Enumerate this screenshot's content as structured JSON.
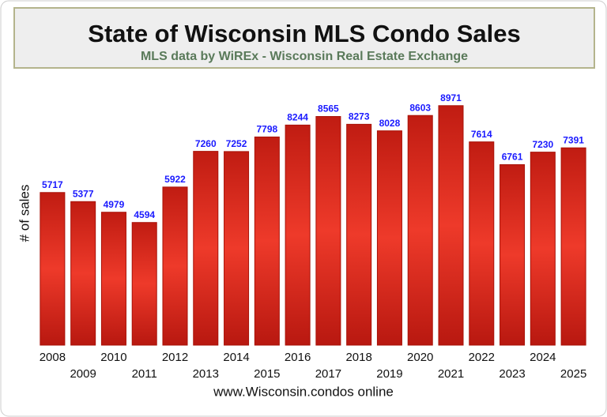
{
  "chart_data": {
    "type": "bar",
    "title": "State of Wisconsin MLS Condo Sales",
    "subtitle": "MLS data by WiREx - Wisconsin Real Estate Exchange",
    "y_label": "# of sales",
    "footer": "www.Wisconsin.condos online",
    "categories": [
      "2008",
      "2009",
      "2010",
      "2011",
      "2012",
      "2013",
      "2014",
      "2015",
      "2016",
      "2017",
      "2018",
      "2019",
      "2020",
      "2021",
      "2022",
      "2023",
      "2024",
      "2025"
    ],
    "values": [
      5717,
      5377,
      4979,
      4594,
      5922,
      7260,
      7252,
      7798,
      8244,
      8565,
      8273,
      8028,
      8603,
      8971,
      7614,
      6761,
      7230,
      7391
    ],
    "color": "#ee3a2a",
    "ylim": [
      0,
      10000
    ]
  }
}
